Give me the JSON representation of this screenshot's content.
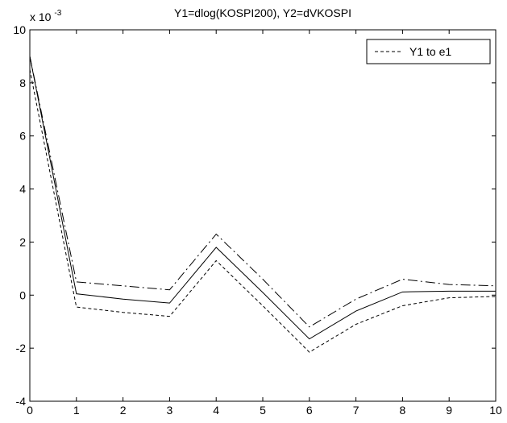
{
  "chart_data": {
    "type": "line",
    "title": "Y1=dlog(KOSPI200), Y2=dVKOSPI",
    "xlabel": "",
    "ylabel": "",
    "y_scale_label": "x 10",
    "y_scale_exponent": "-3",
    "xlim": [
      0,
      10
    ],
    "ylim": [
      -4,
      10
    ],
    "x_ticks": [
      "0",
      "1",
      "2",
      "3",
      "4",
      "5",
      "6",
      "7",
      "8",
      "9",
      "10"
    ],
    "y_ticks": [
      "-4",
      "-2",
      "0",
      "2",
      "4",
      "6",
      "8",
      "10"
    ],
    "grid": false,
    "legend_position": "top-right",
    "x": [
      0,
      1,
      2,
      3,
      4,
      5,
      6,
      7,
      8,
      9,
      10
    ],
    "series": [
      {
        "name": "Y1 to e1",
        "line_style": "dashed",
        "color": "#000000",
        "values": [
          8.5,
          -0.45,
          -0.65,
          -0.8,
          1.3,
          -0.4,
          -2.15,
          -1.1,
          -0.4,
          -0.1,
          -0.05
        ]
      },
      {
        "line_style": "solid",
        "color": "#000000",
        "values": [
          9.0,
          0.05,
          -0.15,
          -0.3,
          1.8,
          0.1,
          -1.65,
          -0.6,
          0.12,
          0.15,
          0.15
        ]
      },
      {
        "line_style": "dash-dot",
        "color": "#000000",
        "values": [
          9.0,
          0.5,
          0.35,
          0.2,
          2.3,
          0.6,
          -1.2,
          -0.15,
          0.6,
          0.4,
          0.35
        ]
      }
    ]
  }
}
